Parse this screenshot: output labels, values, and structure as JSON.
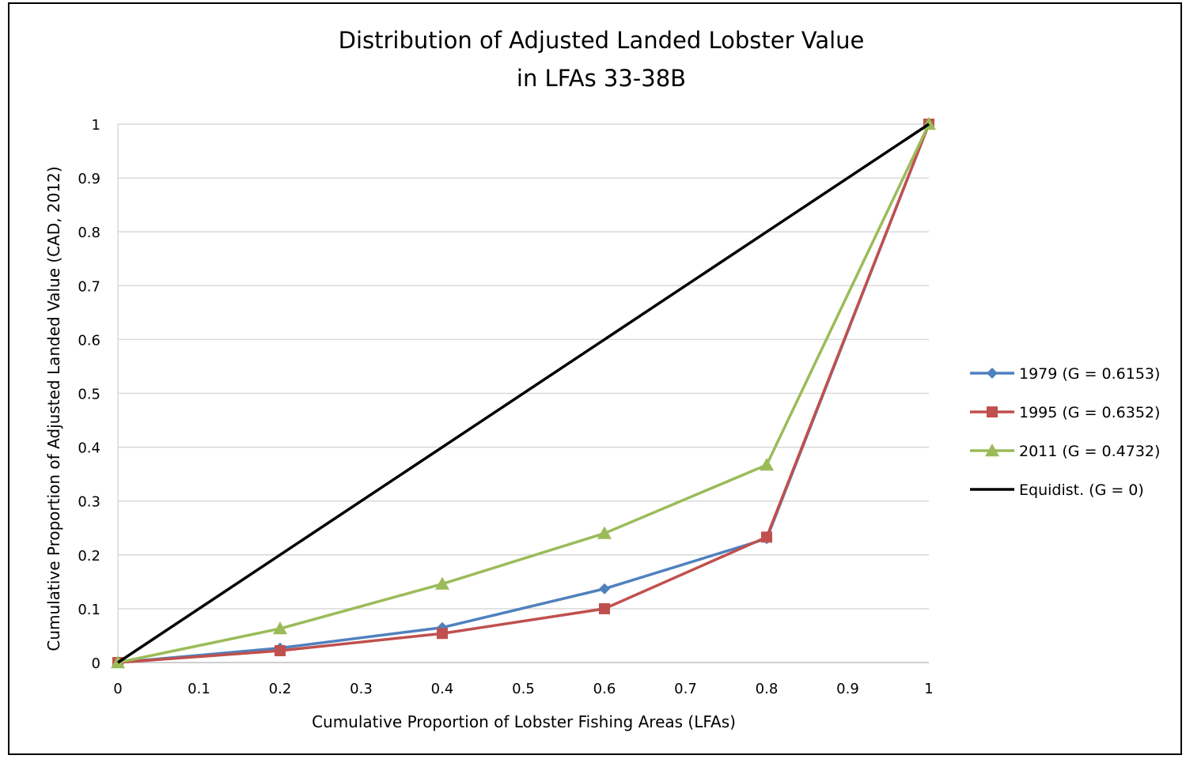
{
  "chart_data": {
    "type": "line",
    "title": [
      "Distribution of Adjusted Landed Lobster Value",
      "in LFAs 33-38B"
    ],
    "xlabel": "Cumulative Proportion of Lobster Fishing Areas (LFAs)",
    "ylabel": "Cumulative Proportion of Adjusted Landed Value (CAD, 2012)",
    "xlim": [
      0,
      1
    ],
    "ylim": [
      0,
      1
    ],
    "xticks": [
      "0",
      "0.1",
      "0.2",
      "0.3",
      "0.4",
      "0.5",
      "0.6",
      "0.7",
      "0.8",
      "0.9",
      "1"
    ],
    "yticks": [
      "0",
      "0.1",
      "0.2",
      "0.3",
      "0.4",
      "0.5",
      "0.6",
      "0.7",
      "0.8",
      "0.9",
      "1"
    ],
    "grid": "horizontal",
    "legend_position": "right",
    "series": [
      {
        "name": "1979 (G = 0.6153)",
        "color": "#4f81bd",
        "marker": "diamond",
        "x": [
          0,
          0.2,
          0.4,
          0.6,
          0.8,
          1
        ],
        "y": [
          0,
          0.027,
          0.065,
          0.137,
          0.23,
          1
        ]
      },
      {
        "name": "1995 (G = 0.6352)",
        "color": "#c0504d",
        "marker": "square",
        "x": [
          0,
          0.2,
          0.4,
          0.6,
          0.8,
          1
        ],
        "y": [
          0,
          0.022,
          0.054,
          0.1,
          0.233,
          1
        ]
      },
      {
        "name": "2011 (G = 0.4732)",
        "color": "#9bbb59",
        "marker": "triangle",
        "x": [
          0,
          0.2,
          0.4,
          0.6,
          0.8,
          1
        ],
        "y": [
          0,
          0.063,
          0.146,
          0.24,
          0.367,
          1
        ]
      },
      {
        "name": "Equidist. (G = 0)",
        "color": "#000000",
        "marker": "none",
        "x": [
          0,
          1
        ],
        "y": [
          0,
          1
        ]
      }
    ]
  }
}
